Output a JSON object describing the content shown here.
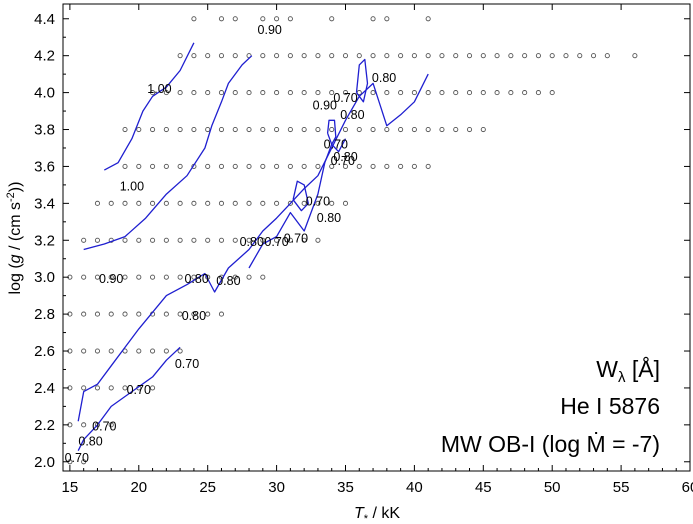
{
  "chart_data": {
    "type": "scatter",
    "xlabel": "T* / kK",
    "ylabel": "log (g / (cm s-2))",
    "xlim": [
      14.5,
      60
    ],
    "ylim": [
      1.95,
      4.48
    ],
    "xticks": [
      15,
      20,
      25,
      30,
      35,
      40,
      45,
      50,
      55,
      60
    ],
    "yticks": [
      2.0,
      2.2,
      2.4,
      2.6,
      2.8,
      3.0,
      3.2,
      3.4,
      3.6,
      3.8,
      4.0,
      4.2,
      4.4
    ],
    "annotation": {
      "line1": "Wλ [Å]",
      "line2": "He I 5876",
      "line3": "MW OB-I (log Ṁ = -7)"
    },
    "grid": false,
    "series": [
      {
        "kind": "model-grid-points",
        "marker": "open-circle",
        "rows": [
          {
            "logg": 2.0,
            "teff": [
              15,
              16
            ]
          },
          {
            "logg": 2.2,
            "teff": [
              15,
              16,
              17,
              18
            ]
          },
          {
            "logg": 2.4,
            "teff": [
              15,
              16,
              17,
              18,
              19,
              20,
              21
            ]
          },
          {
            "logg": 2.6,
            "teff": [
              15,
              16,
              17,
              18,
              19,
              20,
              21,
              22,
              23
            ]
          },
          {
            "logg": 2.8,
            "teff": [
              15,
              16,
              17,
              18,
              19,
              20,
              21,
              22,
              23,
              24,
              25,
              26
            ]
          },
          {
            "logg": 3.0,
            "teff": [
              15,
              16,
              17,
              18,
              19,
              20,
              21,
              22,
              23,
              24,
              25,
              26,
              27,
              28,
              29
            ]
          },
          {
            "logg": 3.2,
            "teff": [
              16,
              17,
              18,
              19,
              20,
              21,
              22,
              23,
              24,
              25,
              26,
              27,
              28,
              29,
              30,
              31,
              32,
              33
            ]
          },
          {
            "logg": 3.4,
            "teff": [
              17,
              18,
              19,
              20,
              21,
              22,
              23,
              24,
              25,
              26,
              27,
              28,
              29,
              30,
              31,
              32,
              33,
              34,
              35
            ]
          },
          {
            "logg": 3.6,
            "teff": [
              19,
              20,
              21,
              22,
              23,
              24,
              25,
              26,
              27,
              28,
              29,
              30,
              31,
              32,
              33,
              34,
              35,
              36,
              37,
              38,
              39,
              40,
              41
            ]
          },
          {
            "logg": 3.8,
            "teff": [
              19,
              20,
              21,
              22,
              23,
              24,
              25,
              26,
              27,
              28,
              29,
              30,
              31,
              32,
              33,
              34,
              35,
              36,
              37,
              38,
              39,
              40,
              41,
              42,
              43,
              44,
              45
            ]
          },
          {
            "logg": 4.0,
            "teff": [
              21,
              22,
              23,
              24,
              25,
              26,
              27,
              28,
              29,
              30,
              31,
              32,
              33,
              34,
              35,
              36,
              37,
              38,
              39,
              40,
              41,
              42,
              43,
              44,
              45,
              46,
              47,
              48,
              49,
              50
            ]
          },
          {
            "logg": 4.2,
            "teff": [
              23,
              24,
              25,
              26,
              27,
              28,
              29,
              30,
              31,
              32,
              33,
              34,
              35,
              36,
              37,
              38,
              39,
              40,
              41,
              42,
              43,
              44,
              45,
              46,
              47,
              48,
              49,
              50,
              51,
              52,
              53,
              54,
              56
            ]
          },
          {
            "logg": 4.4,
            "teff": [
              24,
              26,
              27,
              29,
              30,
              31,
              34,
              37,
              38,
              41
            ]
          }
        ]
      },
      {
        "kind": "contour-line",
        "level": "1.00",
        "points": [
          [
            17.5,
            3.58
          ],
          [
            18.5,
            3.62
          ],
          [
            19.5,
            3.75
          ],
          [
            20.3,
            3.9
          ],
          [
            21.0,
            3.98
          ],
          [
            22.0,
            4.03
          ],
          [
            23.0,
            4.12
          ],
          [
            24.0,
            4.27
          ]
        ]
      },
      {
        "kind": "contour-line",
        "level": "0.90",
        "points": [
          [
            16.0,
            3.15
          ],
          [
            17.5,
            3.18
          ],
          [
            19.0,
            3.22
          ],
          [
            20.5,
            3.32
          ],
          [
            22.0,
            3.45
          ],
          [
            23.5,
            3.55
          ],
          [
            24.8,
            3.7
          ],
          [
            25.3,
            3.82
          ],
          [
            26.0,
            3.95
          ],
          [
            26.5,
            4.05
          ],
          [
            27.5,
            4.15
          ],
          [
            28.2,
            4.2
          ]
        ]
      },
      {
        "kind": "contour-line",
        "level": "0.80",
        "points": [
          [
            15.6,
            2.22
          ],
          [
            16.0,
            2.38
          ],
          [
            17.0,
            2.42
          ],
          [
            18.0,
            2.52
          ],
          [
            20.0,
            2.72
          ],
          [
            22.0,
            2.9
          ],
          [
            23.5,
            2.96
          ],
          [
            24.8,
            3.02
          ],
          [
            25.5,
            2.92
          ],
          [
            26.5,
            3.05
          ],
          [
            28.0,
            3.15
          ],
          [
            29.0,
            3.25
          ],
          [
            30.0,
            3.32
          ],
          [
            31.0,
            3.4
          ],
          [
            32.0,
            3.48
          ],
          [
            33.0,
            3.55
          ],
          [
            34.0,
            3.7
          ],
          [
            35.0,
            3.85
          ],
          [
            36.0,
            3.98
          ],
          [
            37.0,
            4.05
          ],
          [
            38.0,
            3.82
          ],
          [
            39.0,
            3.88
          ],
          [
            40.0,
            3.95
          ],
          [
            41.0,
            4.1
          ]
        ]
      },
      {
        "kind": "contour-line",
        "level": "0.70",
        "points": [
          [
            15.6,
            2.06
          ],
          [
            16.0,
            2.12
          ],
          [
            17.0,
            2.2
          ],
          [
            18.0,
            2.3
          ],
          [
            19.5,
            2.38
          ],
          [
            21.0,
            2.46
          ],
          [
            22.0,
            2.55
          ],
          [
            23.0,
            2.62
          ]
        ]
      },
      {
        "kind": "contour-line",
        "level": "0.70",
        "points": [
          [
            28.0,
            3.05
          ],
          [
            29.0,
            3.18
          ],
          [
            30.0,
            3.22
          ],
          [
            31.0,
            3.35
          ],
          [
            32.0,
            3.25
          ],
          [
            33.0,
            3.45
          ],
          [
            33.5,
            3.62
          ],
          [
            34.0,
            3.72
          ],
          [
            34.5,
            3.68
          ],
          [
            35.0,
            3.75
          ]
        ]
      },
      {
        "kind": "closed-contour",
        "level": "0.70",
        "points": [
          [
            35.8,
            4.0
          ],
          [
            36.0,
            4.15
          ],
          [
            36.4,
            4.18
          ],
          [
            36.6,
            4.05
          ],
          [
            36.3,
            3.95
          ],
          [
            35.8,
            4.0
          ]
        ]
      },
      {
        "kind": "closed-contour",
        "level": "0.70",
        "points": [
          [
            33.7,
            3.78
          ],
          [
            33.8,
            3.85
          ],
          [
            34.2,
            3.85
          ],
          [
            34.3,
            3.76
          ],
          [
            34.0,
            3.72
          ],
          [
            33.7,
            3.78
          ]
        ]
      },
      {
        "kind": "closed-contour",
        "level": "0.80",
        "points": [
          [
            31.2,
            3.42
          ],
          [
            31.5,
            3.52
          ],
          [
            32.0,
            3.5
          ],
          [
            32.3,
            3.4
          ],
          [
            31.8,
            3.36
          ],
          [
            31.2,
            3.42
          ]
        ]
      }
    ],
    "contour_labels": [
      {
        "text": "0.90",
        "x": 29.5,
        "y": 4.34
      },
      {
        "text": "1.00",
        "x": 21.5,
        "y": 4.02
      },
      {
        "text": "1.00",
        "x": 19.5,
        "y": 3.49
      },
      {
        "text": "0.90",
        "x": 33.5,
        "y": 3.93
      },
      {
        "text": "0.70",
        "x": 35.0,
        "y": 3.97
      },
      {
        "text": "0.80",
        "x": 35.5,
        "y": 3.88
      },
      {
        "text": "0.80",
        "x": 37.8,
        "y": 4.08
      },
      {
        "text": "0.70",
        "x": 34.3,
        "y": 3.72
      },
      {
        "text": "0.70",
        "x": 34.8,
        "y": 3.63
      },
      {
        "text": "0.80",
        "x": 35.0,
        "y": 3.65
      },
      {
        "text": "0.70",
        "x": 33.0,
        "y": 3.41
      },
      {
        "text": "0.80",
        "x": 33.8,
        "y": 3.32
      },
      {
        "text": "0.80",
        "x": 28.2,
        "y": 3.19
      },
      {
        "text": "0.70",
        "x": 30.0,
        "y": 3.19
      },
      {
        "text": "0.70",
        "x": 31.4,
        "y": 3.21
      },
      {
        "text": "0.90",
        "x": 18.0,
        "y": 2.99
      },
      {
        "text": "0.80",
        "x": 24.2,
        "y": 2.99
      },
      {
        "text": "0.80",
        "x": 26.5,
        "y": 2.98
      },
      {
        "text": "0.80",
        "x": 24.0,
        "y": 2.79
      },
      {
        "text": "0.70",
        "x": 23.5,
        "y": 2.53
      },
      {
        "text": "0.70",
        "x": 20.0,
        "y": 2.39
      },
      {
        "text": "0.70",
        "x": 17.5,
        "y": 2.19
      },
      {
        "text": "0.80",
        "x": 16.5,
        "y": 2.11
      },
      {
        "text": "0.70",
        "x": 15.5,
        "y": 2.02
      }
    ],
    "colors": {
      "contour": "#1f1fd0",
      "markers": "#555555",
      "axes": "#000000"
    }
  }
}
